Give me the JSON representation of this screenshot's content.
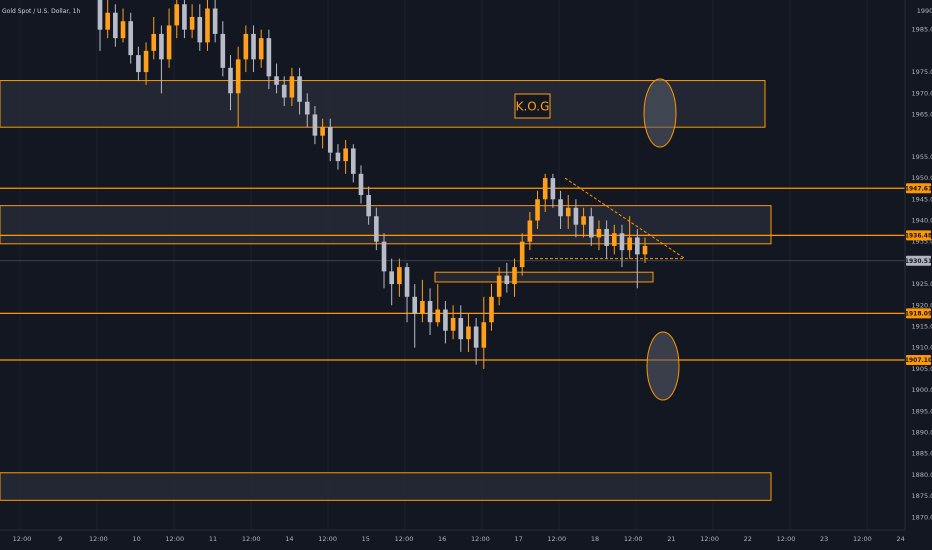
{
  "chart_data": {
    "type": "candlestick",
    "title": "Gold Spot / U.S. Dollar, 1h",
    "colors": {
      "background": "#131722",
      "up": "#ff9f1a",
      "down": "#b7bcc8",
      "level": "#ff9800",
      "zone_fill": "#2a2e39"
    },
    "y_ticks": [
      "1985.00",
      "1975.00",
      "1970.00",
      "1965.00",
      "1955.00",
      "1950.00",
      "1945.00",
      "1940.00",
      "1935.00",
      "1925.00",
      "1920.00",
      "1915.00",
      "1910.00",
      "1905.00",
      "1900.00",
      "1895.00",
      "1890.00",
      "1885.00",
      "1880.00",
      "1875.00",
      "1870.00"
    ],
    "y_top_label": "1990",
    "x_ticks": [
      "12:00",
      "9",
      "12:00",
      "10",
      "12:00",
      "11",
      "12:00",
      "14",
      "12:00",
      "15",
      "12:00",
      "16",
      "12:00",
      "17",
      "12:00",
      "18",
      "12:00",
      "21",
      "12:00",
      "22",
      "12:00",
      "23",
      "12:00",
      "24"
    ],
    "ylim": [
      1867,
      1992
    ],
    "levels": [
      {
        "price": 1947.61,
        "label": "1947.61"
      },
      {
        "price": 1936.48,
        "label": "1936.48"
      },
      {
        "price": 1918.09,
        "label": "1918.09"
      },
      {
        "price": 1907.1,
        "label": "1907.10"
      }
    ],
    "current_price": {
      "price": 1930.51,
      "label": "1930.51"
    },
    "zones": [
      {
        "from": 1962,
        "to": 1973
      },
      {
        "from": 1934.5,
        "to": 1943.5
      },
      {
        "from": 1925.5,
        "to": 1927.8
      },
      {
        "from": 1874,
        "to": 1880.5
      }
    ],
    "annotation": "K.O.G",
    "candles": [
      [
        1992,
        1985,
        1994,
        1980
      ],
      [
        1985,
        1989,
        1992,
        1983
      ],
      [
        1989,
        1983,
        1991,
        1981
      ],
      [
        1983,
        1987,
        1990,
        1982
      ],
      [
        1987,
        1979,
        1989,
        1977
      ],
      [
        1979,
        1975,
        1981,
        1973
      ],
      [
        1975,
        1980,
        1982,
        1972
      ],
      [
        1980,
        1984,
        1988,
        1978
      ],
      [
        1984,
        1978,
        1986,
        1970
      ],
      [
        1978,
        1986,
        1990,
        1976
      ],
      [
        1986,
        1991,
        1993,
        1983
      ],
      [
        1991,
        1985,
        1993,
        1983
      ],
      [
        1985,
        1988,
        1991,
        1983
      ],
      [
        1988,
        1982,
        1991,
        1980
      ],
      [
        1982,
        1990,
        1992,
        1980
      ],
      [
        1990,
        1984,
        1992,
        1982
      ],
      [
        1984,
        1976,
        1987,
        1974
      ],
      [
        1976,
        1970,
        1979,
        1966
      ],
      [
        1970,
        1978,
        1981,
        1962
      ],
      [
        1978,
        1984,
        1986,
        1975
      ],
      [
        1984,
        1978,
        1986,
        1975
      ],
      [
        1978,
        1983,
        1985,
        1976
      ],
      [
        1983,
        1974,
        1985,
        1971
      ],
      [
        1974,
        1972,
        1977,
        1970
      ],
      [
        1972,
        1969,
        1974,
        1967
      ],
      [
        1969,
        1974,
        1976,
        1967
      ],
      [
        1974,
        1968,
        1976,
        1965
      ],
      [
        1968,
        1965,
        1970,
        1962
      ],
      [
        1965,
        1960,
        1967,
        1958
      ],
      [
        1960,
        1962,
        1964,
        1957
      ],
      [
        1962,
        1956,
        1964,
        1954
      ],
      [
        1956,
        1954,
        1958,
        1952
      ],
      [
        1954,
        1957,
        1959,
        1951
      ],
      [
        1957,
        1951,
        1958,
        1949
      ],
      [
        1951,
        1946,
        1953,
        1944
      ],
      [
        1946,
        1941,
        1948,
        1939
      ],
      [
        1941,
        1935,
        1943,
        1933
      ],
      [
        1935,
        1928,
        1937,
        1924
      ],
      [
        1928,
        1925,
        1931,
        1920
      ],
      [
        1925,
        1929,
        1931,
        1922
      ],
      [
        1929,
        1922,
        1930,
        1916
      ],
      [
        1922,
        1918,
        1925,
        1910
      ],
      [
        1918,
        1921,
        1926,
        1916
      ],
      [
        1921,
        1916,
        1924,
        1913
      ],
      [
        1916,
        1919,
        1925,
        1915
      ],
      [
        1919,
        1914,
        1921,
        1911
      ],
      [
        1914,
        1917,
        1920,
        1912
      ],
      [
        1917,
        1912,
        1920,
        1909
      ],
      [
        1912,
        1915,
        1918,
        1909
      ],
      [
        1915,
        1910,
        1917,
        1906
      ],
      [
        1910,
        1916,
        1922,
        1905
      ],
      [
        1916,
        1922,
        1925,
        1914
      ],
      [
        1922,
        1927,
        1929,
        1920
      ],
      [
        1927,
        1925,
        1930,
        1923
      ],
      [
        1925,
        1929,
        1931,
        1922
      ],
      [
        1929,
        1935,
        1937,
        1927
      ],
      [
        1935,
        1940,
        1942,
        1933
      ],
      [
        1940,
        1945,
        1947,
        1938
      ],
      [
        1945,
        1950,
        1951,
        1942
      ],
      [
        1950,
        1945,
        1951,
        1943
      ],
      [
        1945,
        1941,
        1947,
        1938
      ],
      [
        1941,
        1943,
        1946,
        1938
      ],
      [
        1943,
        1939,
        1945,
        1936
      ],
      [
        1939,
        1941,
        1943,
        1936
      ],
      [
        1941,
        1936,
        1943,
        1934
      ],
      [
        1936,
        1938,
        1940,
        1933
      ],
      [
        1938,
        1934,
        1940,
        1931
      ],
      [
        1934,
        1937,
        1939,
        1932
      ],
      [
        1937,
        1933,
        1939,
        1929
      ],
      [
        1933,
        1936,
        1941,
        1931
      ],
      [
        1936,
        1932,
        1938,
        1924
      ],
      [
        1932,
        1934,
        1936,
        1930
      ]
    ]
  }
}
